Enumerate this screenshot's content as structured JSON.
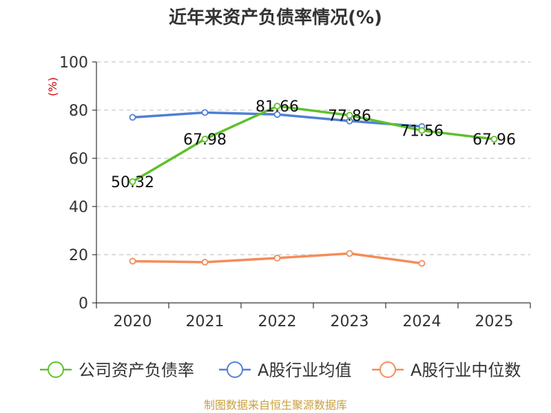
{
  "chart_data": {
    "type": "line",
    "title": "近年来资产负债率情况(%)",
    "ylabel": "(%)",
    "xlabel": "",
    "categories": [
      "2020",
      "2021",
      "2022",
      "2023",
      "2024",
      "2025"
    ],
    "ylim": [
      0,
      100
    ],
    "yticks": [
      0,
      20,
      40,
      60,
      80,
      100
    ],
    "grid": true,
    "legend_position": "bottom",
    "series": [
      {
        "name": "公司资产负债率",
        "color": "#5cc12a",
        "values": [
          50.32,
          67.98,
          81.66,
          77.86,
          71.56,
          67.96
        ],
        "labels": [
          "50.32",
          "67.98",
          "81.66",
          "77.86",
          "71.56",
          "67.96"
        ]
      },
      {
        "name": "A股行业均值",
        "color": "#4f7fd6",
        "values": [
          77.0,
          79.0,
          78.2,
          75.5,
          73.2,
          null
        ]
      },
      {
        "name": "A股行业中位数",
        "color": "#f58c5a",
        "values": [
          17.3,
          16.9,
          18.6,
          20.5,
          16.4,
          null
        ]
      }
    ]
  },
  "footer": {
    "source": "制图数据来自恒生聚源数据库"
  }
}
